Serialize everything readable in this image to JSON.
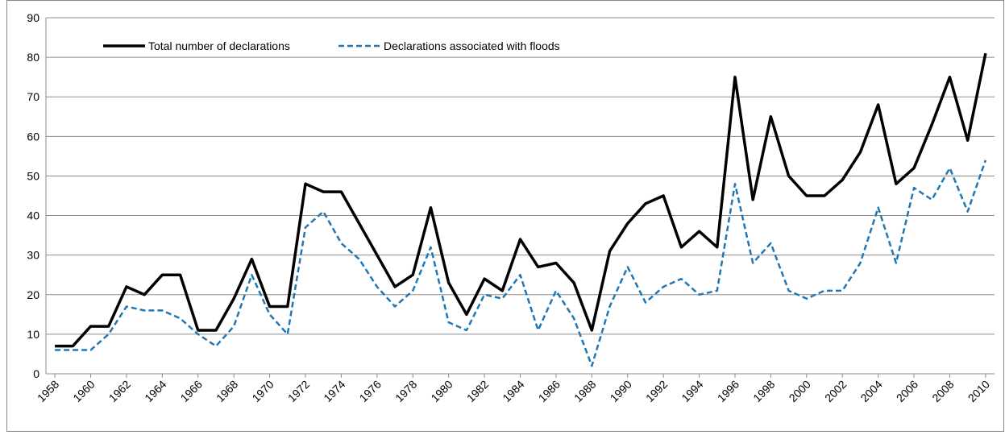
{
  "chart_data": {
    "type": "line",
    "x": [
      1958,
      1959,
      1960,
      1961,
      1962,
      1963,
      1964,
      1965,
      1966,
      1967,
      1968,
      1969,
      1970,
      1971,
      1972,
      1973,
      1974,
      1975,
      1976,
      1977,
      1978,
      1979,
      1980,
      1981,
      1982,
      1983,
      1984,
      1985,
      1986,
      1987,
      1988,
      1989,
      1990,
      1991,
      1992,
      1993,
      1994,
      1995,
      1996,
      1997,
      1998,
      1999,
      2000,
      2001,
      2002,
      2003,
      2004,
      2005,
      2006,
      2007,
      2008,
      2009,
      2010
    ],
    "series": [
      {
        "name": "Total number of declarations",
        "color": "#000000",
        "dash": "solid",
        "values": [
          7,
          7,
          12,
          12,
          22,
          20,
          25,
          25,
          11,
          11,
          19,
          29,
          17,
          17,
          48,
          46,
          46,
          38,
          30,
          22,
          25,
          42,
          23,
          15,
          24,
          21,
          34,
          27,
          28,
          23,
          11,
          31,
          38,
          43,
          45,
          32,
          36,
          32,
          75,
          44,
          65,
          50,
          45,
          45,
          49,
          56,
          68,
          48,
          52,
          63,
          75,
          59,
          81
        ]
      },
      {
        "name": "Declarations associated with floods",
        "color": "#1f77b4",
        "dash": "dashed",
        "values": [
          6,
          6,
          6,
          10,
          17,
          16,
          16,
          14,
          10,
          7,
          12,
          25,
          15,
          10,
          37,
          41,
          33,
          29,
          22,
          17,
          21,
          32,
          13,
          11,
          20,
          19,
          25,
          11,
          21,
          14,
          2,
          17,
          27,
          18,
          22,
          24,
          20,
          21,
          48,
          28,
          33,
          21,
          19,
          21,
          21,
          28,
          42,
          28,
          47,
          44,
          52,
          41,
          54
        ]
      }
    ],
    "xlim": [
      1957.5,
      2010.5
    ],
    "xticks": [
      1958,
      1960,
      1962,
      1964,
      1966,
      1968,
      1970,
      1972,
      1974,
      1976,
      1978,
      1980,
      1982,
      1984,
      1986,
      1988,
      1990,
      1992,
      1994,
      1996,
      1998,
      2000,
      2002,
      2004,
      2006,
      2008,
      2010
    ],
    "ylim": [
      0,
      90
    ],
    "yticks": [
      0,
      10,
      20,
      30,
      40,
      50,
      60,
      70,
      80,
      90
    ],
    "grid": true,
    "legend": "top"
  }
}
